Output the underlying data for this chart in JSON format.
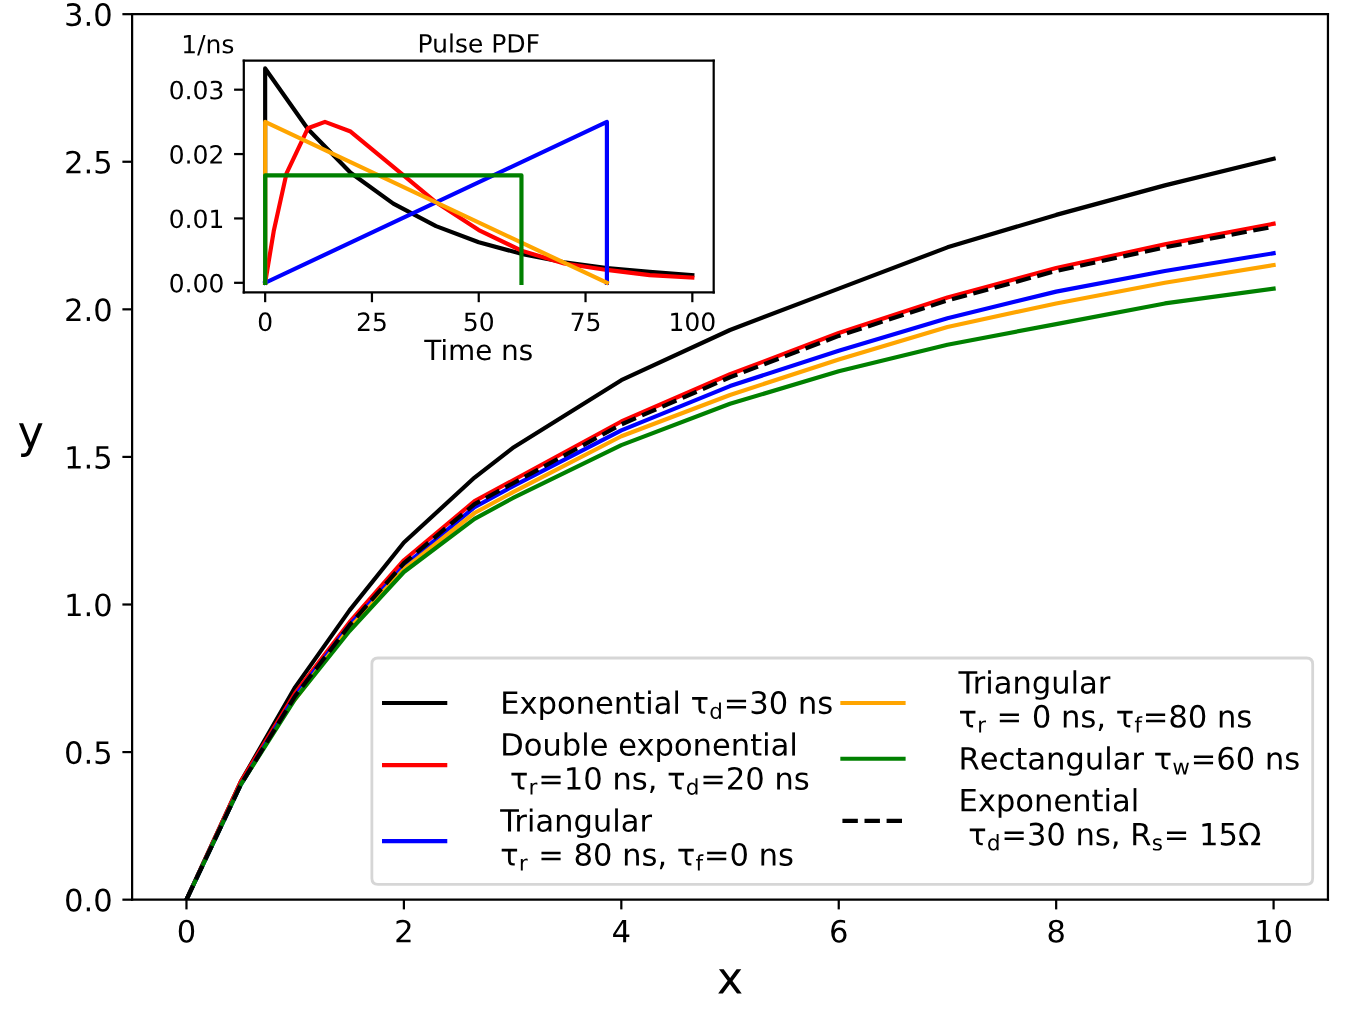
{
  "chart_data": [
    {
      "type": "line",
      "xlabel": "x",
      "ylabel": "y",
      "xlim": [
        -0.5,
        10.5
      ],
      "ylim": [
        0,
        3
      ],
      "xticks": [
        0,
        2,
        4,
        6,
        8,
        10
      ],
      "yticks": [
        {
          "value": 0,
          "label": "0.0"
        },
        {
          "value": 0.5,
          "label": "0.5"
        },
        {
          "value": 1,
          "label": "1.0"
        },
        {
          "value": 1.5,
          "label": "1.5"
        },
        {
          "value": 2,
          "label": "2.0"
        },
        {
          "value": 2.5,
          "label": "2.5"
        },
        {
          "value": 3,
          "label": "3.0"
        }
      ],
      "x": [
        0,
        0.5,
        1,
        1.5,
        2,
        2.65,
        3,
        4,
        5,
        6,
        7,
        8,
        9,
        10
      ],
      "legend": "bottom right",
      "grid": false,
      "marker": "none",
      "series": [
        {
          "name": "Exponential τ$_{d}$=30 ns",
          "color": "#000000",
          "values": [
            0,
            0.4,
            0.72,
            0.98,
            1.21,
            1.43,
            1.53,
            1.76,
            1.93,
            2.07,
            2.21,
            2.32,
            2.42,
            2.51
          ]
        },
        {
          "name": "Double exponential\n τ$_{r}$=10 ns, τ$_{d}$=20 ns",
          "color": "#ff0000",
          "values": [
            0,
            0.4,
            0.7,
            0.94,
            1.15,
            1.35,
            1.42,
            1.62,
            1.78,
            1.92,
            2.04,
            2.14,
            2.22,
            2.29
          ]
        },
        {
          "name": "Triangular\nτ$_{r}$ = 80 ns, τ$_{f}$=0 ns",
          "color": "#0000ff",
          "values": [
            0,
            0.39,
            0.69,
            0.93,
            1.13,
            1.33,
            1.4,
            1.59,
            1.74,
            1.86,
            1.97,
            2.06,
            2.13,
            2.19
          ]
        },
        {
          "name": "Triangular\nτ$_{r}$ = 0 ns, τ$_{f}$=80 ns",
          "color": "#ffa500",
          "values": [
            null,
            null,
            0.68,
            0.92,
            1.12,
            1.31,
            1.38,
            1.57,
            1.71,
            1.83,
            1.94,
            2.02,
            2.09,
            2.15
          ]
        },
        {
          "name": "Rectangular τ$_{w}$=60 ns",
          "color": "#008000",
          "values": [
            0,
            0.39,
            0.68,
            0.91,
            1.11,
            1.29,
            1.36,
            1.54,
            1.68,
            1.79,
            1.88,
            1.95,
            2.02,
            2.07
          ]
        },
        {
          "name": "Exponential\n τ$_{d}$=30 ns, R$_{s}$= 15Ω",
          "color": "#000000",
          "line_style": "dashed",
          "values": [
            0,
            0.39,
            0.69,
            0.93,
            1.14,
            1.34,
            1.41,
            1.61,
            1.77,
            1.91,
            2.03,
            2.13,
            2.21,
            2.28
          ]
        }
      ]
    },
    {
      "type": "line",
      "title": "Pulse PDF",
      "xlabel": "Time ns",
      "ylabel": "1/ns",
      "xlim": [
        -5,
        105
      ],
      "ylim": [
        -0.0015,
        0.0345
      ],
      "xticks": [
        0,
        25,
        50,
        75,
        100
      ],
      "yticks": [
        {
          "value": 0,
          "label": "0.00"
        },
        {
          "value": 0.01,
          "label": "0.01"
        },
        {
          "value": 0.02,
          "label": "0.02"
        },
        {
          "value": 0.03,
          "label": "0.03"
        }
      ],
      "grid": false,
      "marker": "none",
      "series": [
        {
          "color": "#000000",
          "x": [
            0,
            0,
            10,
            20,
            30,
            40,
            50,
            60,
            70,
            80,
            90,
            100
          ],
          "values": [
            0,
            0.0333,
            0.0239,
            0.0171,
            0.0123,
            0.0088,
            0.0063,
            0.0045,
            0.0032,
            0.0023,
            0.0017,
            0.0012
          ]
        },
        {
          "color": "#ff0000",
          "x": [
            0,
            2,
            5,
            10,
            14,
            20,
            30,
            40,
            50,
            60,
            70,
            80,
            90,
            100
          ],
          "values": [
            0,
            0.008,
            0.017,
            0.024,
            0.025,
            0.0235,
            0.018,
            0.0125,
            0.0082,
            0.005,
            0.003,
            0.002,
            0.0012,
            0.0008
          ]
        },
        {
          "color": "#0000ff",
          "x": [
            0,
            80,
            80
          ],
          "values": [
            0,
            0.025,
            0
          ]
        },
        {
          "color": "#ffa500",
          "x": [
            0,
            0,
            80
          ],
          "values": [
            0,
            0.025,
            0
          ]
        },
        {
          "color": "#008000",
          "x": [
            0,
            0,
            60,
            60
          ],
          "values": [
            0,
            0.0167,
            0.0167,
            0
          ]
        }
      ]
    }
  ]
}
